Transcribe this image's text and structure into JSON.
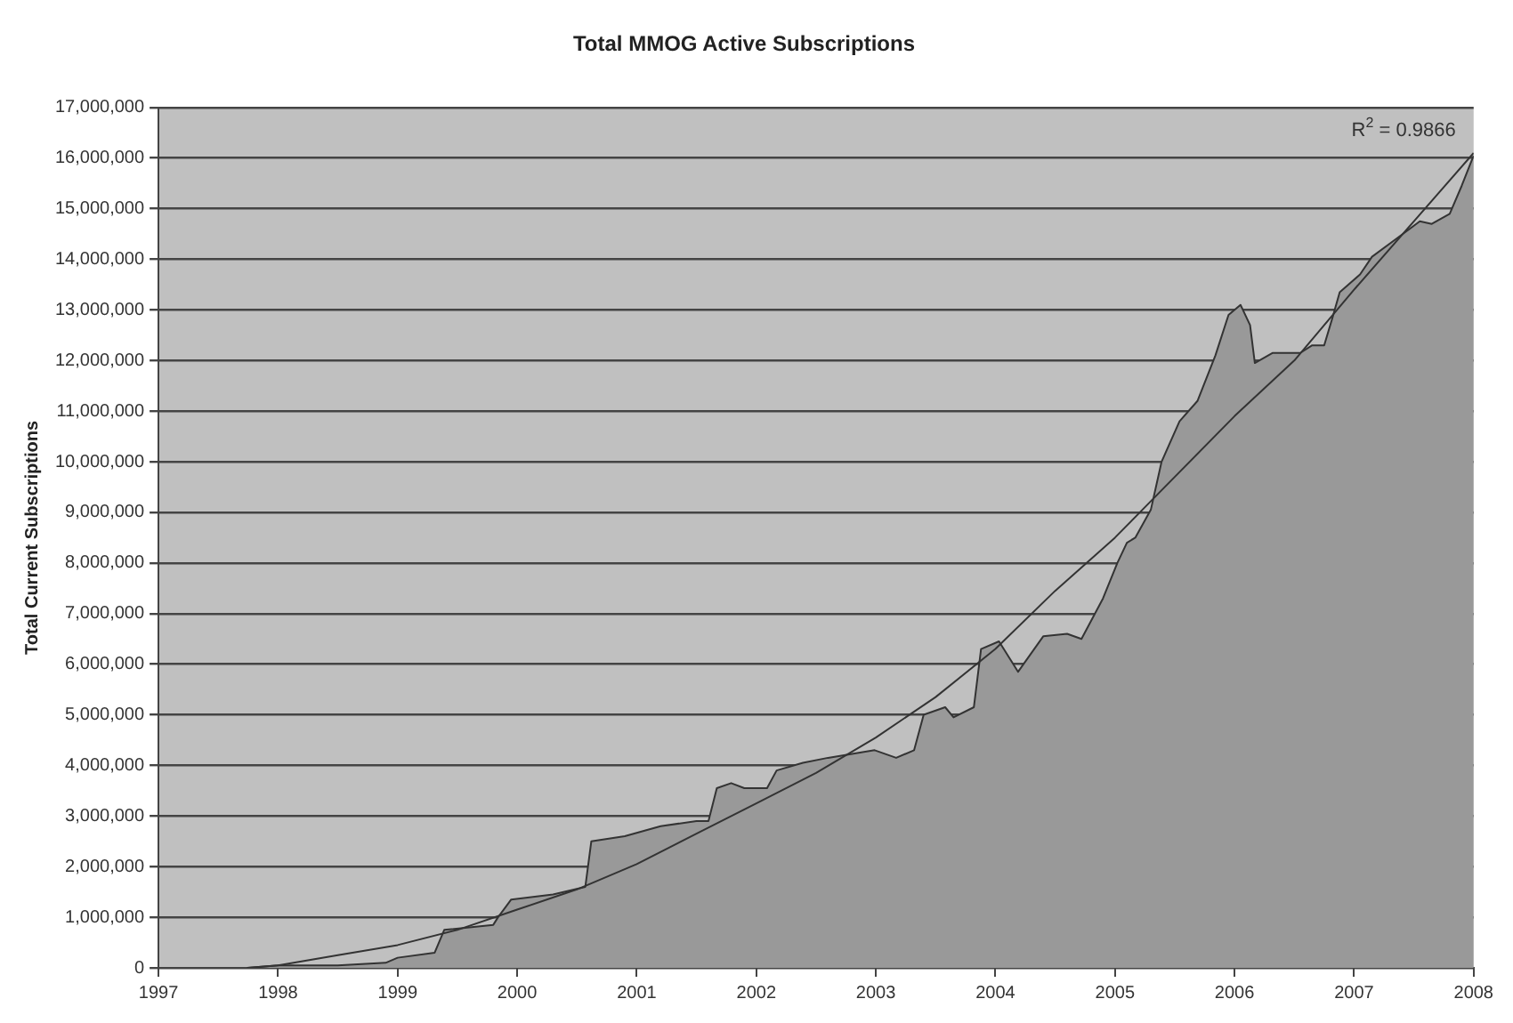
{
  "chart_data": {
    "type": "area",
    "title": "Total MMOG Active Subscriptions",
    "ylabel": "Total Current Subscriptions",
    "annotations": [
      "R$^{2}$ = 0.9866"
    ],
    "xlim": [
      1997,
      2008
    ],
    "xticks": [
      1997,
      1998,
      1999,
      2000,
      2001,
      2002,
      2003,
      2004,
      2005,
      2006,
      2007,
      2008
    ],
    "ylim": [
      0,
      17000000
    ],
    "yticks": [
      0,
      {
        "value": 1000000,
        "label": "1,000,000"
      },
      {
        "value": 2000000,
        "label": "2,000,000"
      },
      {
        "value": 3000000,
        "label": "3,000,000"
      },
      {
        "value": 4000000,
        "label": "4,000,000"
      },
      {
        "value": 5000000,
        "label": "5,000,000"
      },
      {
        "value": 6000000,
        "label": "6,000,000"
      },
      {
        "value": 7000000,
        "label": "7,000,000"
      },
      {
        "value": 8000000,
        "label": "8,000,000"
      },
      {
        "value": 9000000,
        "label": "9,000,000"
      },
      {
        "value": 10000000,
        "label": "10,000,000"
      },
      {
        "value": 11000000,
        "label": "11,000,000"
      },
      {
        "value": 12000000,
        "label": "12,000,000"
      },
      {
        "value": 13000000,
        "label": "13,000,000"
      },
      {
        "value": 14000000,
        "label": "14,000,000"
      },
      {
        "value": 15000000,
        "label": "15,000,000"
      },
      {
        "value": 16000000,
        "label": "16,000,000"
      },
      {
        "value": 17000000,
        "label": "17,000,000"
      }
    ],
    "grid": "y",
    "marker": "none",
    "series": [
      {
        "color": "#999999",
        "x": [
          1997.74,
          1998.0,
          1998.5,
          1998.9,
          1999.0,
          1999.31,
          1999.39,
          1999.8,
          1999.84,
          1999.95,
          2000.3,
          2000.57,
          2000.62,
          2000.9,
          2001.2,
          2001.5,
          2001.6,
          2001.67,
          2001.79,
          2001.9,
          2002.09,
          2002.17,
          2002.39,
          2002.6,
          2002.99,
          2003.17,
          2003.32,
          2003.4,
          2003.58,
          2003.65,
          2003.82,
          2003.88,
          2004.03,
          2004.19,
          2004.4,
          2004.6,
          2004.72,
          2004.9,
          2005.02,
          2005.1,
          2005.17,
          2005.3,
          2005.39,
          2005.54,
          2005.69,
          2005.84,
          2005.95,
          2006.05,
          2006.13,
          2006.17,
          2006.32,
          2006.55,
          2006.65,
          2006.75,
          2006.82,
          2006.88,
          2007.05,
          2007.15,
          2007.35,
          2007.55,
          2007.65,
          2007.8,
          2007.9,
          2008.0
        ],
        "values": [
          0,
          50000,
          50000,
          100000,
          200000,
          300000,
          750000,
          850000,
          1000000,
          1350000,
          1450000,
          1600000,
          2500000,
          2600000,
          2800000,
          2900000,
          2900000,
          3550000,
          3650000,
          3550000,
          3550000,
          3900000,
          4050000,
          4150000,
          4300000,
          4150000,
          4300000,
          5000000,
          5150000,
          4950000,
          5150000,
          6300000,
          6450000,
          5850000,
          6550000,
          6600000,
          6500000,
          7300000,
          8000000,
          8400000,
          8500000,
          9050000,
          10000000,
          10800000,
          11200000,
          12100000,
          12900000,
          13100000,
          12700000,
          11950000,
          12150000,
          12150000,
          12300000,
          12300000,
          12850000,
          13350000,
          13700000,
          14050000,
          14400000,
          14750000,
          14700000,
          14900000,
          15450000,
          16050000
        ]
      },
      {
        "type": "line",
        "color": "#333333",
        "x": [
          1997.75,
          1998,
          1998.5,
          1999,
          1999.5,
          2000,
          2000.5,
          2001,
          2001.5,
          2002,
          2002.5,
          2003,
          2003.5,
          2004,
          2004.5,
          2005,
          2005.5,
          2006,
          2006.5,
          2007,
          2007.5,
          2008
        ],
        "values": [
          0,
          50000,
          250000,
          450000,
          750000,
          1150000,
          1550000,
          2050000,
          2650000,
          3250000,
          3850000,
          4550000,
          5350000,
          6300000,
          7450000,
          8500000,
          9700000,
          10900000,
          12000000,
          13400000,
          14750000,
          16100000
        ]
      }
    ]
  }
}
